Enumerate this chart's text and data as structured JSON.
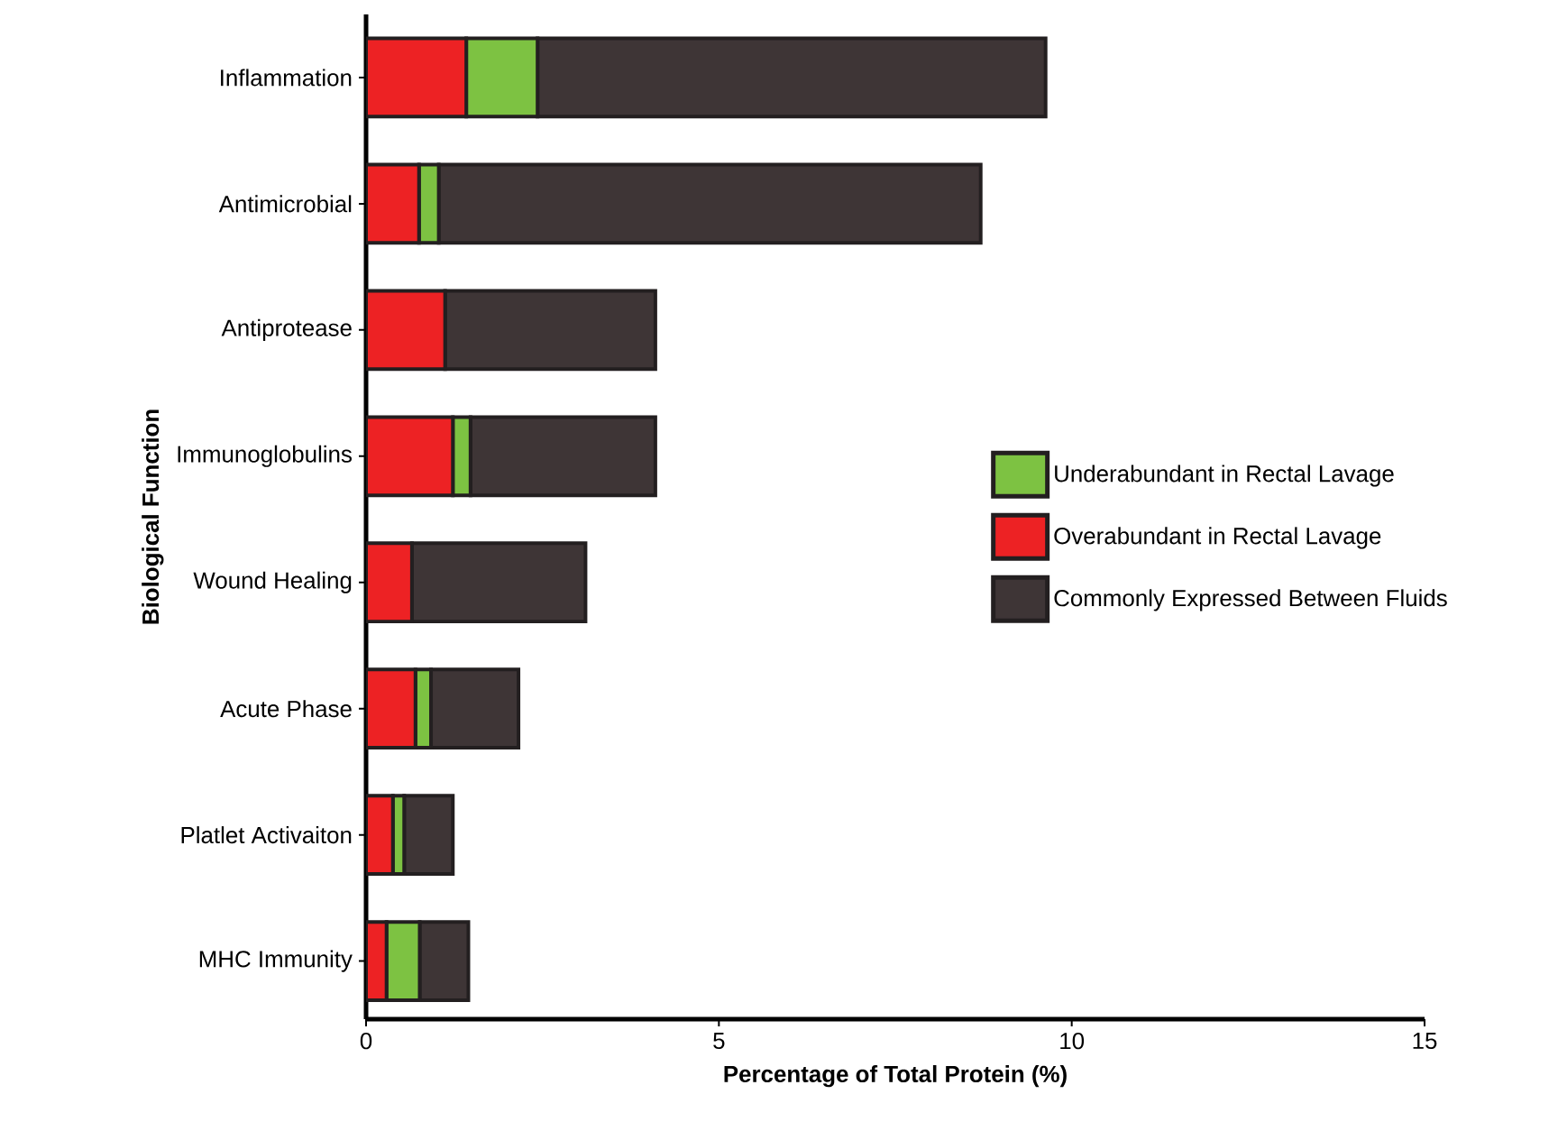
{
  "chart_data": {
    "type": "bar",
    "orientation": "horizontal",
    "stacked": true,
    "xlabel": "Percentage of Total Protein (%)",
    "ylabel": "Biological Function",
    "categories": [
      "Inflammation",
      "Antimicrobial",
      "Antiprotease",
      "Immunoglobulins",
      "Wound Healing",
      "Acute Phase",
      "Platlet Activaiton",
      "MHC Immunity"
    ],
    "series": [
      {
        "name": "Overabundant in Rectal Lavage",
        "color": "#ed2224",
        "values": [
          1.42,
          0.75,
          1.12,
          1.23,
          0.65,
          0.7,
          0.38,
          0.29
        ]
      },
      {
        "name": "Underabundant in Rectal Lavage",
        "color": "#7dc242",
        "values": [
          1.01,
          0.28,
          0,
          0.25,
          0,
          0.22,
          0.16,
          0.47
        ]
      },
      {
        "name": "Commonly Expressed Between Fluids",
        "color": "#3e3536",
        "values": [
          7.2,
          7.68,
          2.98,
          2.62,
          2.46,
          1.24,
          0.69,
          0.69
        ]
      }
    ],
    "xlim": [
      0,
      15
    ],
    "xticks": [
      0,
      5,
      10,
      15
    ],
    "grid": false,
    "legend": "right"
  }
}
